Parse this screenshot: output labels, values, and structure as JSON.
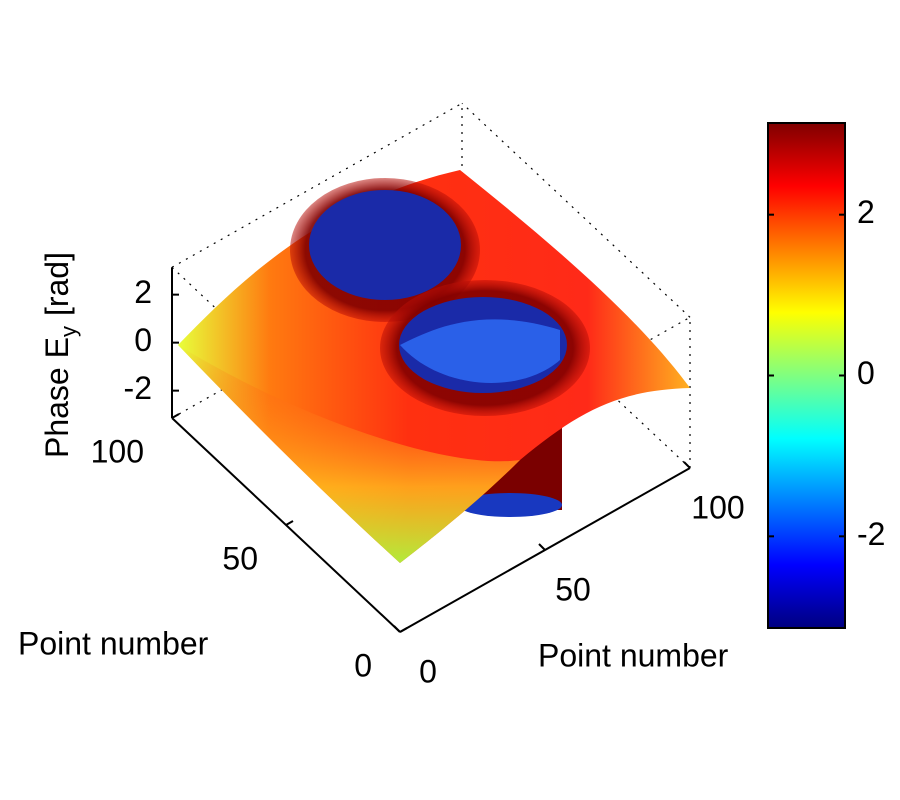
{
  "chart_data": {
    "type": "surface",
    "xlabel": "Point number",
    "ylabel": "Point number",
    "zlabel": {
      "text": "Phase E",
      "subscript": "y",
      "suffix": "[rad]"
    },
    "xlim": [
      0,
      100
    ],
    "xticks": [
      0,
      50,
      100
    ],
    "ylim": [
      0,
      100
    ],
    "yticks": [
      0,
      50,
      100
    ],
    "zlim": [
      -3.14,
      3.14
    ],
    "zticks": [
      -2,
      0,
      2
    ],
    "colorbar": {
      "colormap": "jet",
      "clim": [
        -3.14,
        3.14
      ],
      "ticks": [
        -2,
        0,
        2
      ]
    }
  }
}
